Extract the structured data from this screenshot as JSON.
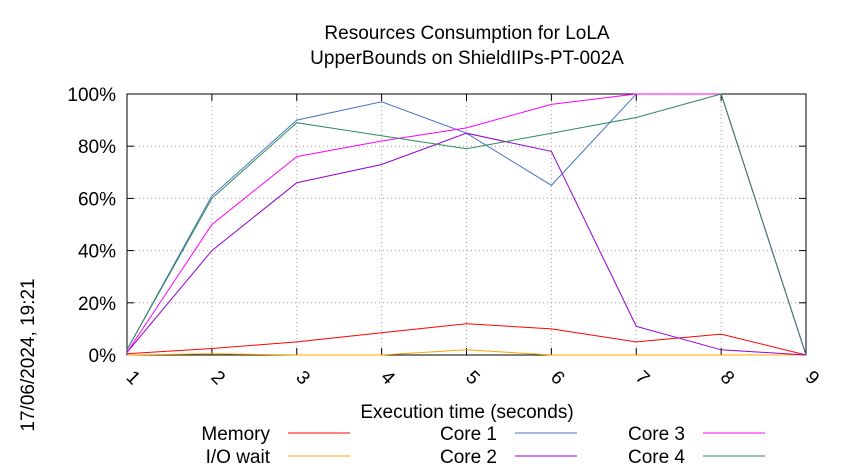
{
  "chart_data": {
    "type": "line",
    "title": "Resources Consumption for LoLA",
    "subtitle": "UpperBounds on ShieldIIPs-PT-002A",
    "xlabel": "Execution time (seconds)",
    "ylabel": "",
    "side_label": "17/06/2024, 19:21",
    "x": [
      1,
      2,
      3,
      4,
      5,
      6,
      7,
      8,
      9
    ],
    "xlim": [
      1,
      9
    ],
    "ylim": [
      0,
      100
    ],
    "yticks": [
      0,
      20,
      40,
      60,
      80,
      100
    ],
    "ytick_labels": [
      "0%",
      "20%",
      "40%",
      "60%",
      "80%",
      "100%"
    ],
    "grid": true,
    "legend_position": "bottom",
    "series": [
      {
        "name": "Memory",
        "color": "#ff0000",
        "values": [
          0.5,
          2.5,
          5,
          8.5,
          12,
          10,
          5,
          8,
          0
        ]
      },
      {
        "name": "I/O wait",
        "color": "#ffa500",
        "values": [
          0,
          0.5,
          0,
          0,
          2,
          0,
          0,
          0,
          0
        ]
      },
      {
        "name": "Core 1",
        "color": "#4472c4",
        "values": [
          2,
          61,
          90,
          97,
          85,
          65,
          100,
          100,
          0
        ]
      },
      {
        "name": "Core 2",
        "color": "#9400d3",
        "values": [
          1,
          40,
          66,
          73,
          85,
          78,
          11,
          2,
          0
        ]
      },
      {
        "name": "Core 3",
        "color": "#ff00ff",
        "values": [
          1,
          50,
          76,
          82,
          87,
          96,
          100,
          100,
          0
        ]
      },
      {
        "name": "Core 4",
        "color": "#2e8b57",
        "values": [
          2,
          60,
          89,
          84,
          79,
          85,
          91,
          100,
          0
        ]
      }
    ]
  }
}
